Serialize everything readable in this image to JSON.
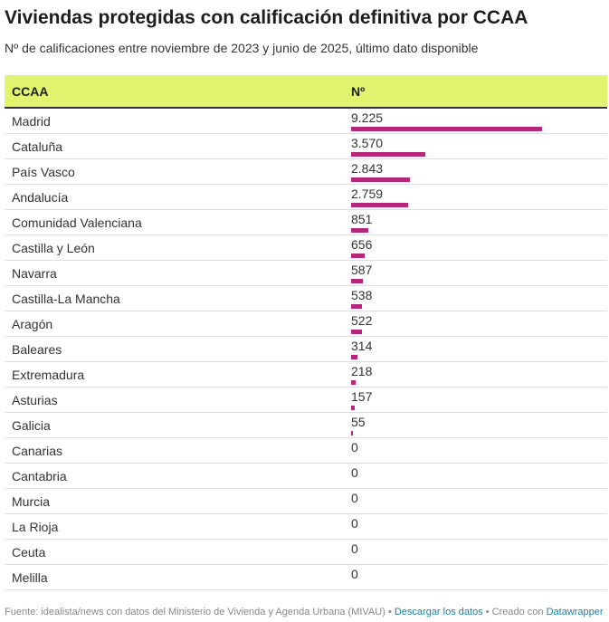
{
  "title": "Viviendas protegidas con calificación definitiva por CCAA",
  "subtitle": "Nº de calificaciones entre noviembre de 2023 y junio de 2025, último dato disponible",
  "footer": {
    "source": "Fuente: idealista/news con datos del Ministerio de Vivienda y Agenda Urbana (MIVAU)",
    "sep": " • ",
    "download": "Descargar los datos",
    "created": "Creado con ",
    "datawrapper": "Datawrapper"
  },
  "colors": {
    "header": "#e2f46f",
    "bar": "#b5267c"
  },
  "chart_data": {
    "type": "table",
    "columns": [
      "CCAA",
      "Nº"
    ],
    "max": 9225,
    "rows": [
      {
        "name": "Madrid",
        "value": 9225,
        "label": "9.225"
      },
      {
        "name": "Cataluña",
        "value": 3570,
        "label": "3.570"
      },
      {
        "name": "País Vasco",
        "value": 2843,
        "label": "2.843"
      },
      {
        "name": "Andalucía",
        "value": 2759,
        "label": "2.759"
      },
      {
        "name": "Comunidad Valenciana",
        "value": 851,
        "label": "851"
      },
      {
        "name": "Castilla y León",
        "value": 656,
        "label": "656"
      },
      {
        "name": "Navarra",
        "value": 587,
        "label": "587"
      },
      {
        "name": "Castilla-La Mancha",
        "value": 538,
        "label": "538"
      },
      {
        "name": "Aragón",
        "value": 522,
        "label": "522"
      },
      {
        "name": "Baleares",
        "value": 314,
        "label": "314"
      },
      {
        "name": "Extremadura",
        "value": 218,
        "label": "218"
      },
      {
        "name": "Asturias",
        "value": 157,
        "label": "157"
      },
      {
        "name": "Galicia",
        "value": 55,
        "label": "55"
      },
      {
        "name": "Canarias",
        "value": 0,
        "label": "0"
      },
      {
        "name": "Cantabria",
        "value": 0,
        "label": "0"
      },
      {
        "name": "Murcia",
        "value": 0,
        "label": "0"
      },
      {
        "name": "La Rioja",
        "value": 0,
        "label": "0"
      },
      {
        "name": "Ceuta",
        "value": 0,
        "label": "0"
      },
      {
        "name": "Melilla",
        "value": 0,
        "label": "0"
      }
    ]
  }
}
